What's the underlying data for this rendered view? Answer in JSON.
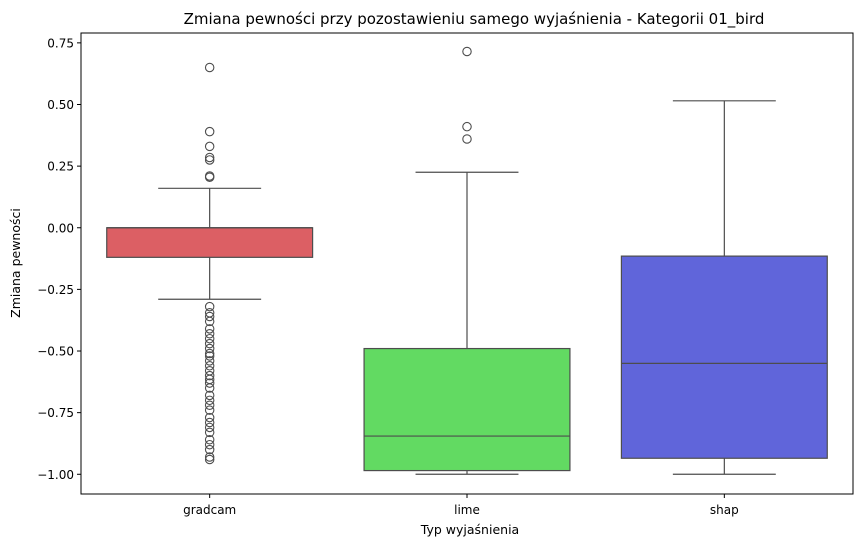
{
  "chart_data": {
    "type": "box",
    "title": "Zmiana pewności przy pozostawieniu samego wyjaśnienia - Kategorii 01_bird",
    "xlabel": "Typ wyjaśnienia",
    "ylabel": "Zmiana pewności",
    "ylim": [
      -1.08,
      0.79
    ],
    "yticks": [
      0.75,
      0.5,
      0.25,
      0.0,
      -0.25,
      -0.5,
      -0.75,
      -1.0
    ],
    "ytick_labels": [
      "0.75",
      "0.50",
      "0.25",
      "0.00",
      "−0.25",
      "−0.50",
      "−0.75",
      "−1.00"
    ],
    "grid": false,
    "categories": [
      "gradcam",
      "lime",
      "shap"
    ],
    "boxes": [
      {
        "name": "gradcam",
        "color": "#dc5f64",
        "whislo": -0.29,
        "q1": -0.12,
        "med": 0.0,
        "q3": 0.0,
        "whishi": 0.16,
        "fliers": [
          0.65,
          0.39,
          0.33,
          0.285,
          0.275,
          0.21,
          0.205,
          -0.32,
          -0.345,
          -0.36,
          -0.38,
          -0.41,
          -0.43,
          -0.45,
          -0.47,
          -0.49,
          -0.51,
          -0.52,
          -0.54,
          -0.56,
          -0.58,
          -0.6,
          -0.615,
          -0.63,
          -0.65,
          -0.68,
          -0.7,
          -0.72,
          -0.74,
          -0.77,
          -0.79,
          -0.81,
          -0.83,
          -0.86,
          -0.88,
          -0.9,
          -0.93,
          -0.94
        ]
      },
      {
        "name": "lime",
        "color": "#62da62",
        "whislo": -1.0,
        "q1": -0.985,
        "med": -0.845,
        "q3": -0.49,
        "whishi": 0.225,
        "fliers": [
          0.715,
          0.41,
          0.36
        ]
      },
      {
        "name": "shap",
        "color": "#6065da",
        "whislo": -1.0,
        "q1": -0.935,
        "med": -0.55,
        "q3": -0.115,
        "whishi": 0.515,
        "fliers": []
      }
    ]
  }
}
